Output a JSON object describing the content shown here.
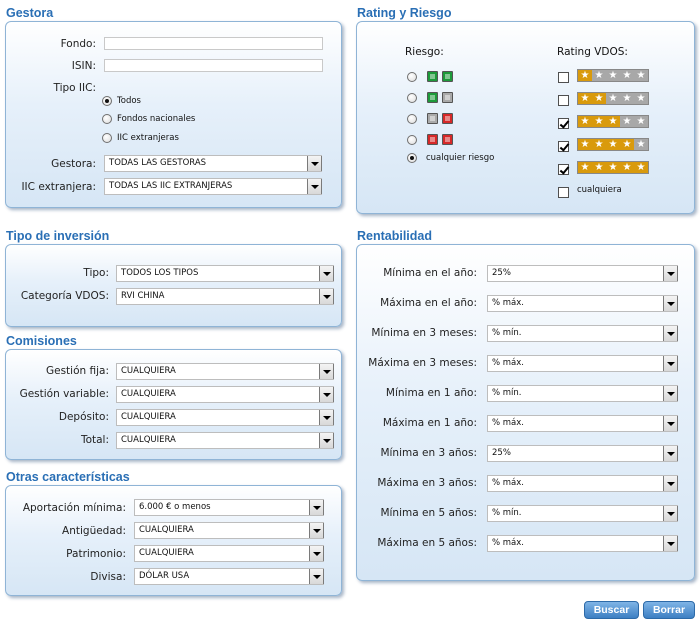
{
  "sections": {
    "gestora": "Gestora",
    "rating": "Rating y Riesgo",
    "tipo": "Tipo de inversión",
    "rentabilidad": "Rentabilidad",
    "comisiones": "Comisiones",
    "otras": "Otras características"
  },
  "gestora": {
    "fondo_label": "Fondo:",
    "fondo_value": "",
    "isin_label": "ISIN:",
    "isin_value": "",
    "tipo_iic_label": "Tipo IIC:",
    "tipo_iic_options": [
      "Todos",
      "Fondos nacionales",
      "IIC extranjeras"
    ],
    "tipo_iic_selected": "Todos",
    "gestora_label": "Gestora:",
    "gestora_value": "TODAS LAS GESTORAS",
    "iic_label": "IIC extranjera:",
    "iic_value": "TODAS LAS IIC EXTRANJERAS"
  },
  "rating": {
    "riesgo_label": "Riesgo:",
    "rating_label": "Rating VDOS:",
    "risk_options": [
      {
        "squares": [
          "green",
          "green"
        ],
        "selected": false
      },
      {
        "squares": [
          "green",
          "gray"
        ],
        "selected": false
      },
      {
        "squares": [
          "gray",
          "red"
        ],
        "selected": false
      },
      {
        "squares": [
          "red",
          "red"
        ],
        "selected": false
      }
    ],
    "any_risk_label": "cualquier riesgo",
    "any_risk_selected": true,
    "rating_options": [
      {
        "stars": 1,
        "checked": false
      },
      {
        "stars": 2,
        "checked": false
      },
      {
        "stars": 3,
        "checked": true
      },
      {
        "stars": 4,
        "checked": true
      },
      {
        "stars": 5,
        "checked": true
      }
    ],
    "any_rating_label": "cualquiera",
    "any_rating_checked": false
  },
  "tipo": {
    "tipo_label": "Tipo:",
    "tipo_value": "TODOS LOS TIPOS",
    "categoria_label": "Categoría VDOS:",
    "categoria_value": "RVI CHINA"
  },
  "comisiones": {
    "fija_label": "Gestión fija:",
    "fija_value": "CUALQUIERA",
    "variable_label": "Gestión variable:",
    "variable_value": "CUALQUIERA",
    "deposito_label": "Depósito:",
    "deposito_value": "CUALQUIERA",
    "total_label": "Total:",
    "total_value": "CUALQUIERA"
  },
  "otras": {
    "aportacion_label": "Aportación mínima:",
    "aportacion_value": "6.000 € o menos",
    "antiguedad_label": "Antigüedad:",
    "antiguedad_value": "CUALQUIERA",
    "patrimonio_label": "Patrimonio:",
    "patrimonio_value": "CUALQUIERA",
    "divisa_label": "Divisa:",
    "divisa_value": "DÓLAR USA"
  },
  "rentabilidad": [
    {
      "label": "Mínima en el año:",
      "value": "25%"
    },
    {
      "label": "Máxima en el año:",
      "value": "% máx."
    },
    {
      "label": "Mínima en 3 meses:",
      "value": "% mín."
    },
    {
      "label": "Máxima en 3 meses:",
      "value": "% máx."
    },
    {
      "label": "Mínima en 1 año:",
      "value": "% mín."
    },
    {
      "label": "Máxima en 1 año:",
      "value": "% máx."
    },
    {
      "label": "Mínima en 3 años:",
      "value": "25%"
    },
    {
      "label": "Máxima en 3 años:",
      "value": "% máx."
    },
    {
      "label": "Mínima en 5 años:",
      "value": "% mín."
    },
    {
      "label": "Máxima en 5 años:",
      "value": "% máx."
    }
  ],
  "buttons": {
    "buscar": "Buscar",
    "borrar": "Borrar"
  },
  "colors": {
    "title": "#2a6fb5",
    "star_on": "#d99a0c",
    "star_off": "#a8a8a8",
    "risk_green": "#1e9a3a",
    "risk_gray": "#a9a9a9",
    "risk_red": "#d62828"
  }
}
